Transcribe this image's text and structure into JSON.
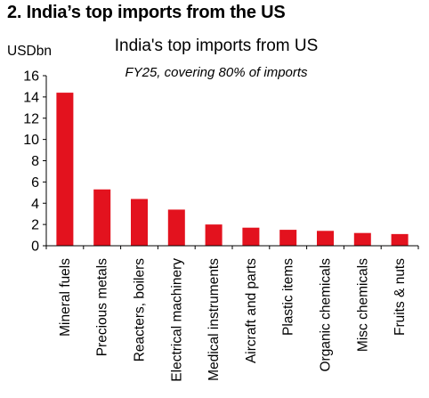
{
  "header": "2. India’s top imports from the US",
  "chart_data": {
    "type": "bar",
    "title": "India's top imports from US",
    "subtitle": "FY25, covering 80% of imports",
    "ylabel": "USDbn",
    "xlabel": "",
    "ylim": [
      0,
      16
    ],
    "yticks": [
      "0",
      "2",
      "4",
      "6",
      "8",
      "10",
      "12",
      "14",
      "16"
    ],
    "grid": false,
    "legend": "none",
    "bar_color": "#e3121e",
    "categories": [
      "Mineral fuels",
      "Precious metals",
      "Reacters, boilers",
      "Electrical machinery",
      "Medical instruments",
      "Aircraft and parts",
      "Plastic items",
      "Organic chemicals",
      "Misc chemicals",
      "Fruits & nuts"
    ],
    "values": [
      14.4,
      5.3,
      4.4,
      3.4,
      2.0,
      1.7,
      1.5,
      1.4,
      1.2,
      1.1
    ]
  }
}
